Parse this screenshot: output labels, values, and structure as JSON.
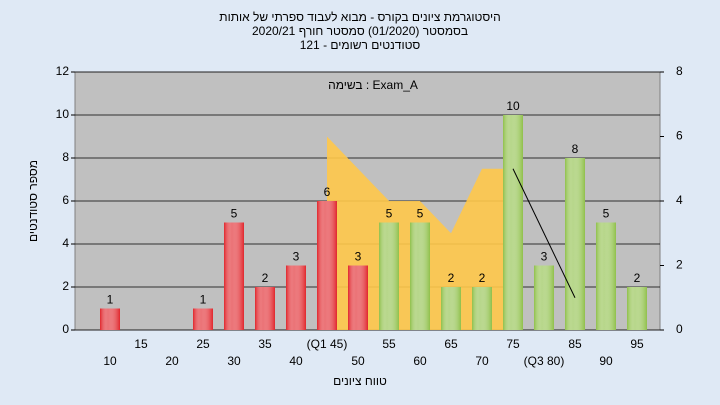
{
  "chart_data": {
    "type": "bar",
    "title": "היסטוגרמת ציונים בקורס - מבוא לעבוד ספרתי של אותות",
    "subtitle": [
      "בסמסטר  (01/2020)  סמסטר חורף 2020/21",
      "סטודנטים רשומים - 121"
    ],
    "annotation": "בשימה : Exam_A",
    "x_label": "טווח ציונים",
    "y_label": "מספר סטודנטים",
    "categories": [
      10,
      15,
      20,
      25,
      30,
      35,
      40,
      "(Q1 45)",
      50,
      55,
      60,
      65,
      70,
      75,
      "(Q3 80)",
      85,
      90,
      95
    ],
    "series": [
      {
        "type": "bar",
        "values": [
          1,
          0,
          0,
          1,
          5,
          2,
          3,
          6,
          3,
          5,
          5,
          2,
          2,
          10,
          3,
          8,
          5,
          2
        ],
        "colors": [
          "#e0252b",
          "#e0252b",
          "#e0252b",
          "#e0252b",
          "#e0252b",
          "#e0252b",
          "#e0252b",
          "#e0252b",
          "#e0252b",
          "#8fc04a",
          "#8fc04a",
          "#8fc04a",
          "#8fc04a",
          "#8fc04a",
          "#8fc04a",
          "#8fc04a",
          "#8fc04a",
          "#8fc04a"
        ]
      },
      {
        "type": "area",
        "axis": "y2",
        "color": "#ffc84a",
        "values": [
          null,
          null,
          null,
          null,
          null,
          null,
          null,
          6,
          5,
          4,
          4,
          3,
          5,
          5,
          null,
          null,
          null,
          null
        ]
      },
      {
        "type": "line",
        "axis": "y2",
        "color": "#000000",
        "values": [
          null,
          null,
          null,
          null,
          null,
          null,
          null,
          null,
          null,
          null,
          null,
          null,
          null,
          5,
          3,
          1,
          null,
          null
        ]
      }
    ],
    "ylim": [
      0,
      12
    ],
    "yticks": [
      0,
      2,
      4,
      6,
      8,
      10,
      12
    ],
    "y2lim": [
      0,
      8
    ],
    "y2ticks": [
      0,
      2,
      4,
      6,
      8
    ],
    "grid": true
  }
}
